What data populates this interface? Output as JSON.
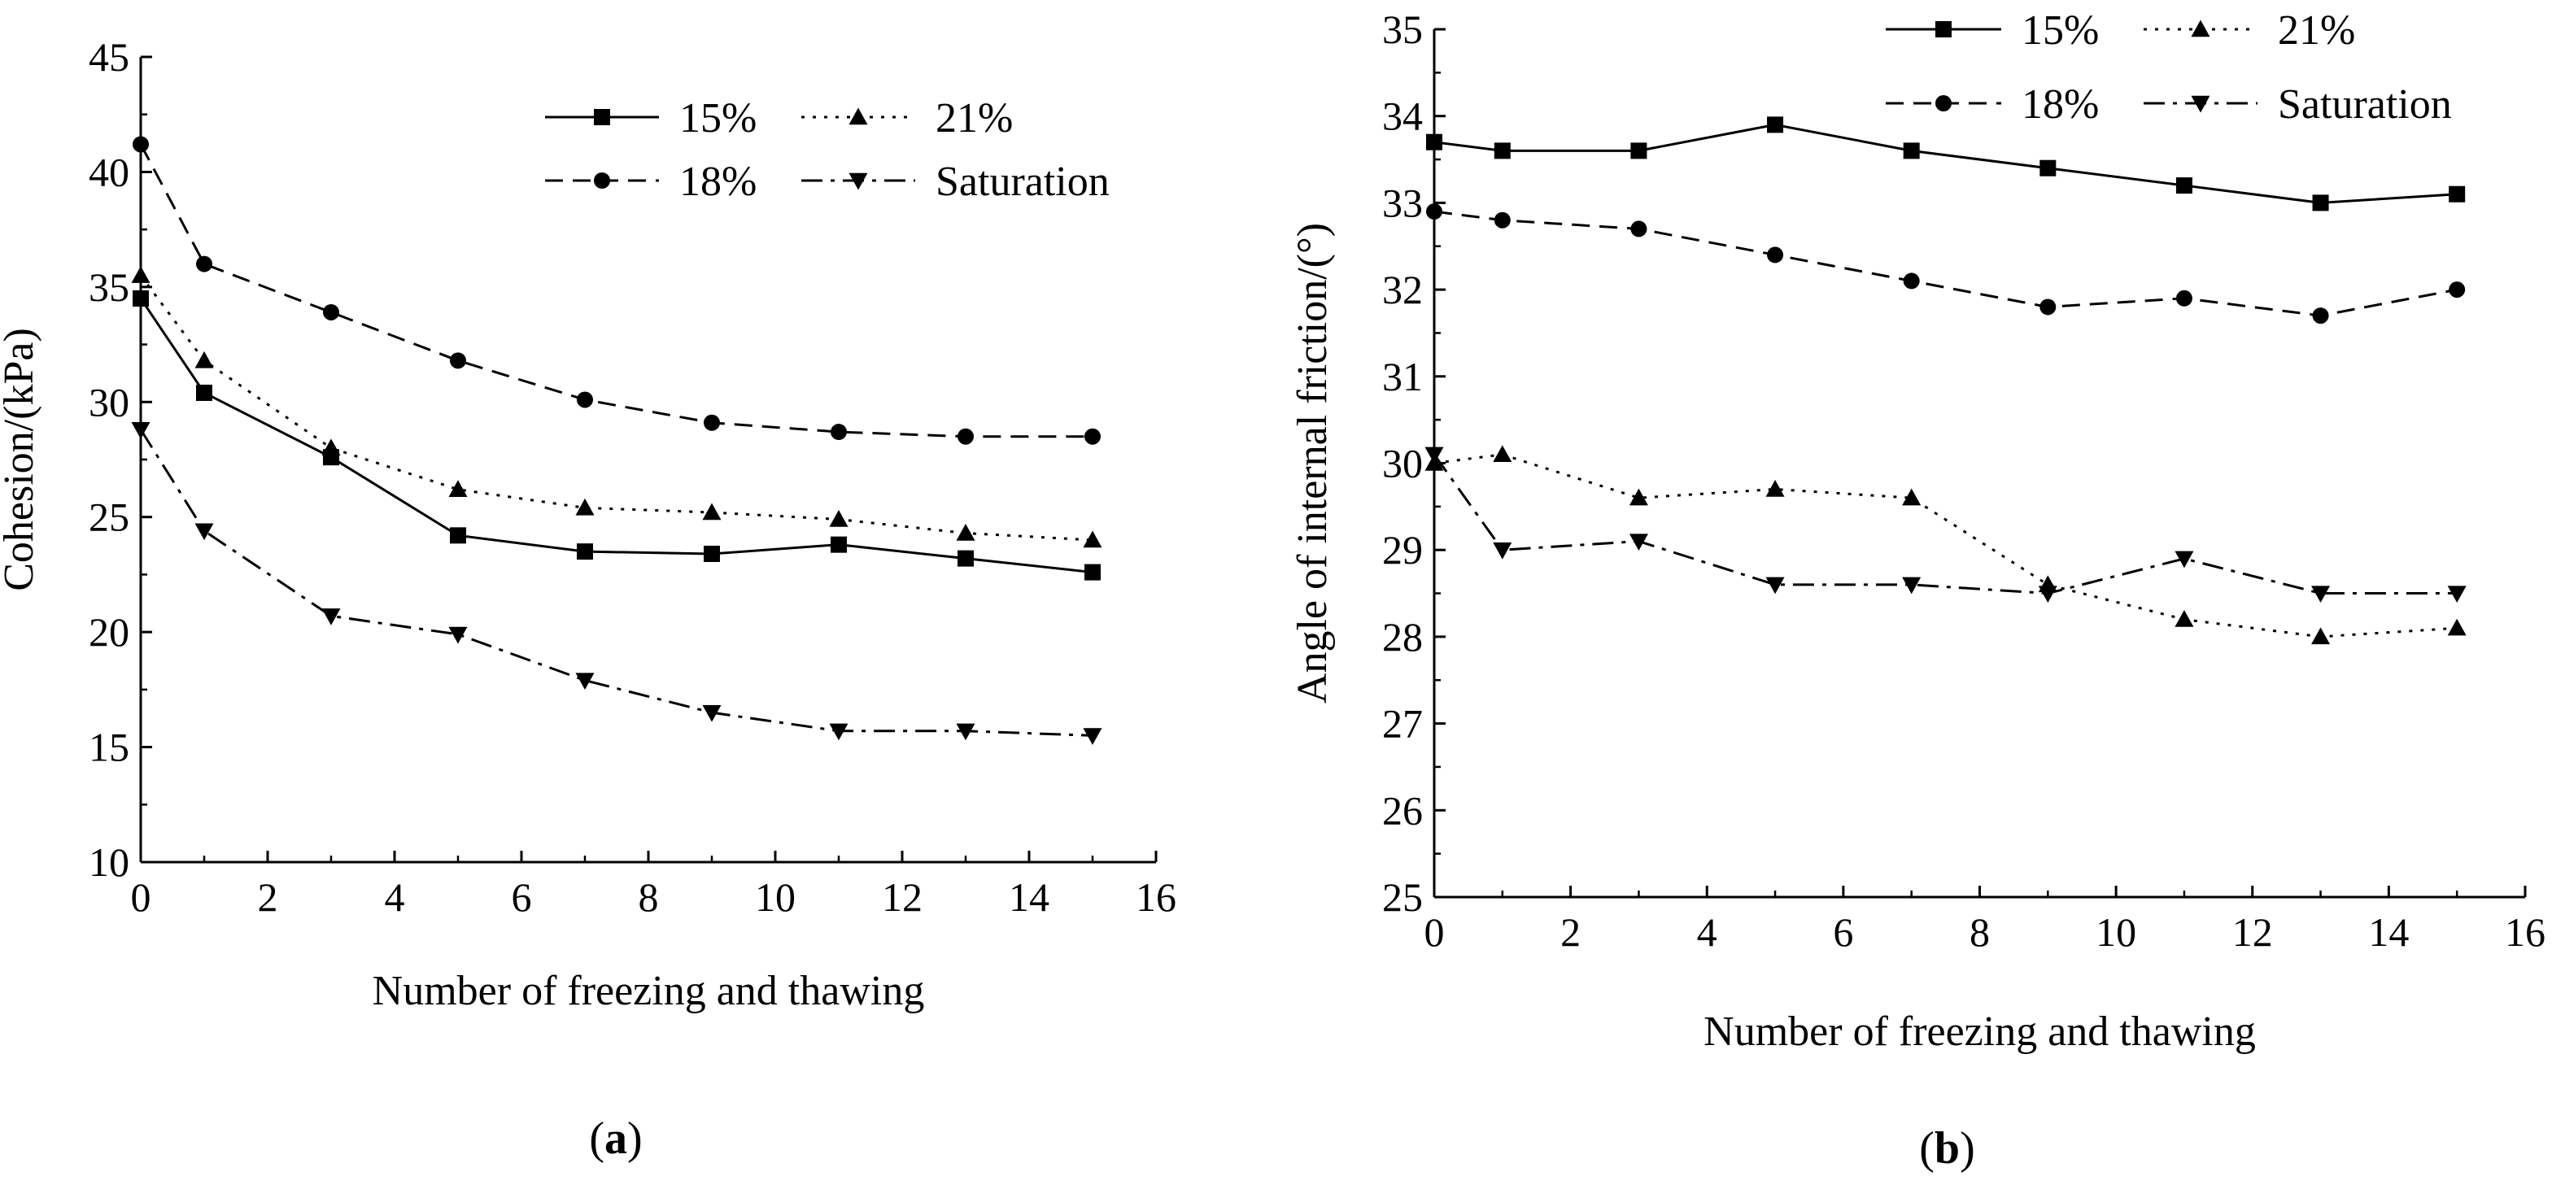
{
  "chart_data": [
    {
      "type": "line",
      "panel_label": "a",
      "title": "",
      "xlabel": "Number of freezing and thawing",
      "ylabel": "Cohesion/(kPa)",
      "xlim": [
        0,
        16
      ],
      "ylim": [
        10,
        45
      ],
      "xticks": [
        0,
        2,
        4,
        6,
        8,
        10,
        12,
        14,
        16
      ],
      "yticks": [
        10,
        15,
        20,
        25,
        30,
        35,
        40,
        45
      ],
      "x": [
        0,
        1,
        3,
        5,
        7,
        9,
        11,
        13,
        15
      ],
      "legend_position": "top-right",
      "series": [
        {
          "name": "15%",
          "marker": "square",
          "dash": "solid",
          "values": [
            34.5,
            30.4,
            27.6,
            24.2,
            23.5,
            23.4,
            23.8,
            23.2,
            22.6
          ]
        },
        {
          "name": "21%",
          "marker": "triangle-up",
          "dash": "dotted",
          "values": [
            35.5,
            31.8,
            28.0,
            26.2,
            25.4,
            25.2,
            24.9,
            24.3,
            24.0
          ]
        },
        {
          "name": "18%",
          "marker": "circle",
          "dash": "dashed",
          "values": [
            41.2,
            36.0,
            33.9,
            31.8,
            30.1,
            29.1,
            28.7,
            28.5,
            28.5
          ]
        },
        {
          "name": "Saturation",
          "marker": "triangle-down",
          "dash": "dashdot",
          "values": [
            28.8,
            24.4,
            20.7,
            19.9,
            17.9,
            16.5,
            15.7,
            15.7,
            15.5
          ]
        }
      ]
    },
    {
      "type": "line",
      "panel_label": "b",
      "title": "",
      "xlabel": "Number of freezing and thawing",
      "ylabel": "Angle of internal friction/(°)",
      "xlim": [
        0,
        16
      ],
      "ylim": [
        25,
        35
      ],
      "xticks": [
        0,
        2,
        4,
        6,
        8,
        10,
        12,
        14,
        16
      ],
      "yticks": [
        25,
        26,
        27,
        28,
        29,
        30,
        31,
        32,
        33,
        34,
        35
      ],
      "x": [
        0,
        1,
        3,
        5,
        7,
        9,
        11,
        13,
        15
      ],
      "legend_position": "top-right",
      "series": [
        {
          "name": "15%",
          "marker": "square",
          "dash": "solid",
          "values": [
            33.7,
            33.6,
            33.6,
            33.9,
            33.6,
            33.4,
            33.2,
            33.0,
            33.1
          ]
        },
        {
          "name": "21%",
          "marker": "triangle-up",
          "dash": "dotted",
          "values": [
            30.0,
            30.1,
            29.6,
            29.7,
            29.6,
            28.6,
            28.2,
            28.0,
            28.1
          ]
        },
        {
          "name": "18%",
          "marker": "circle",
          "dash": "dashed",
          "values": [
            32.9,
            32.8,
            32.7,
            32.4,
            32.1,
            31.8,
            31.9,
            31.7,
            32.0
          ]
        },
        {
          "name": "Saturation",
          "marker": "triangle-down",
          "dash": "dashdot",
          "values": [
            30.1,
            29.0,
            29.1,
            28.6,
            28.6,
            28.5,
            28.9,
            28.5,
            28.5
          ]
        }
      ]
    }
  ]
}
